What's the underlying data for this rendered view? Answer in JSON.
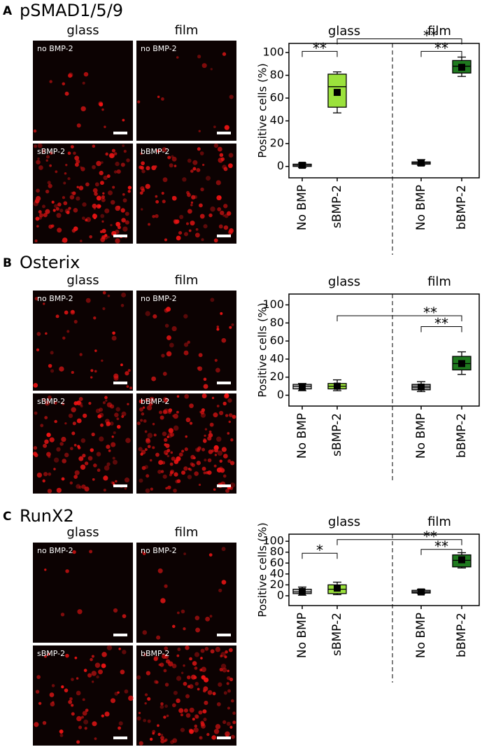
{
  "chart_data": [
    {
      "type": "box",
      "panel": "A",
      "title": "pSMAD1/5/9",
      "image_headers": [
        "glass",
        "film"
      ],
      "image_labels": [
        "no BMP-2",
        "no BMP-2",
        "sBMP-2",
        "bBMP-2"
      ],
      "groups": [
        "glass",
        "film"
      ],
      "ylabel": "Positive cells (%)",
      "categories": [
        "No BMP",
        "sBMP-2",
        "No BMP",
        "bBMP-2"
      ],
      "boxes": [
        {
          "min": -1,
          "q1": 0,
          "median": 1,
          "q3": 2,
          "max": 3,
          "mean": 1,
          "color": "#bdbdbd"
        },
        {
          "min": 47,
          "q1": 52,
          "median": 70,
          "q3": 81,
          "max": 83,
          "mean": 65,
          "color": "#9be23c"
        },
        {
          "min": 1,
          "q1": 2,
          "median": 3,
          "q3": 4,
          "max": 6,
          "mean": 3,
          "color": "#8a8a8a"
        },
        {
          "min": 79,
          "q1": 82,
          "median": 88,
          "q3": 93,
          "max": 96,
          "mean": 87,
          "color": "#1f7a1f"
        }
      ],
      "annotations": [
        "**",
        "**",
        "**"
      ],
      "ylim": [
        -10,
        108
      ],
      "yticks": [
        0,
        20,
        40,
        60,
        80,
        100
      ]
    },
    {
      "type": "box",
      "panel": "B",
      "title": "Osterix",
      "image_headers": [
        "glass",
        "film"
      ],
      "image_labels": [
        "no BMP-2",
        "no BMP-2",
        "sBMP-2",
        "bBMP-2"
      ],
      "groups": [
        "glass",
        "film"
      ],
      "ylabel": "Positive cells (%)",
      "categories": [
        "No BMP",
        "sBMP-2",
        "No BMP",
        "bBMP-2"
      ],
      "boxes": [
        {
          "min": 5,
          "q1": 7,
          "median": 10,
          "q3": 12,
          "max": 13,
          "mean": 9,
          "color": "#c8c8c8"
        },
        {
          "min": 5,
          "q1": 7,
          "median": 10,
          "q3": 13,
          "max": 17,
          "mean": 10,
          "color": "#9be23c"
        },
        {
          "min": 4,
          "q1": 6,
          "median": 9,
          "q3": 12,
          "max": 15,
          "mean": 9,
          "color": "#8a8a8a"
        },
        {
          "min": 23,
          "q1": 28,
          "median": 35,
          "q3": 43,
          "max": 48,
          "mean": 35,
          "color": "#1f7a1f"
        }
      ],
      "annotations": [
        "**",
        "**"
      ],
      "ylim": [
        -12,
        112
      ],
      "yticks": [
        0,
        20,
        40,
        60,
        80,
        100
      ]
    },
    {
      "type": "box",
      "panel": "C",
      "title": "RunX2",
      "image_headers": [
        "glass",
        "film"
      ],
      "image_labels": [
        "no BMP-2",
        "no BMP-2",
        "sBMP-2",
        "bBMP-2"
      ],
      "groups": [
        "glass",
        "film"
      ],
      "ylabel": "Positive cells (%)",
      "categories": [
        "No BMP",
        "sBMP-2",
        "No BMP",
        "bBMP-2"
      ],
      "boxes": [
        {
          "min": 1,
          "q1": 4,
          "median": 7,
          "q3": 12,
          "max": 16,
          "mean": 8,
          "color": "#c8c8c8"
        },
        {
          "min": 2,
          "q1": 4,
          "median": 12,
          "q3": 20,
          "max": 25,
          "mean": 14,
          "color": "#9be23c"
        },
        {
          "min": 4,
          "q1": 5,
          "median": 7,
          "q3": 10,
          "max": 12,
          "mean": 7,
          "color": "#8a8a8a"
        },
        {
          "min": 51,
          "q1": 53,
          "median": 65,
          "q3": 75,
          "max": 79,
          "mean": 66,
          "color": "#1f7a1f"
        }
      ],
      "annotations": [
        "*",
        "**",
        "**"
      ],
      "ylim": [
        -18,
        113
      ],
      "yticks": [
        0,
        20,
        40,
        60,
        80,
        100
      ]
    }
  ]
}
